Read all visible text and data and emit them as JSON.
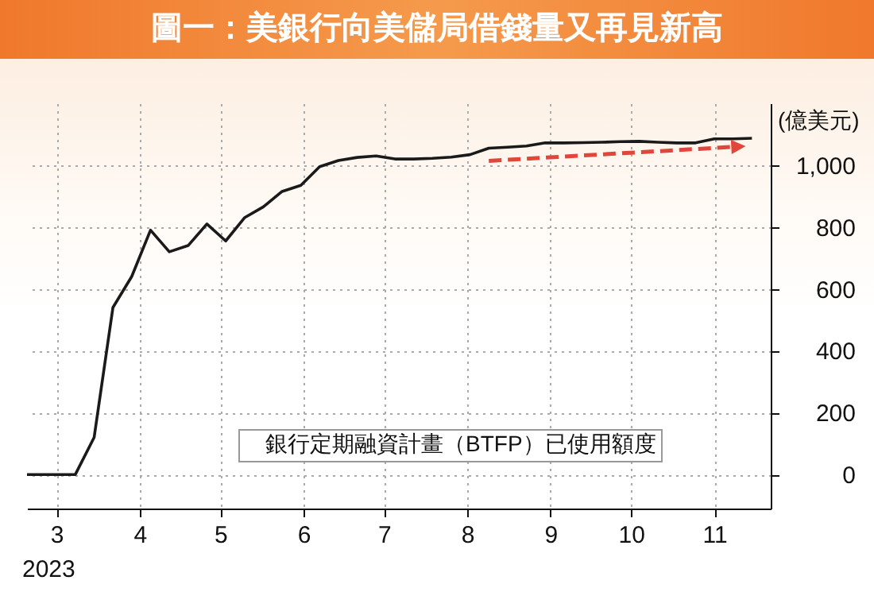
{
  "chart_data": {
    "type": "line",
    "title": "圖一：美銀行向美儲局借錢量又再見新高",
    "ylabel": "(億美元)",
    "x": [
      "2023-02-18",
      "2023-03-08",
      "2023-03-15",
      "2023-03-22",
      "2023-03-29",
      "2023-04-05",
      "2023-04-12",
      "2023-04-19",
      "2023-04-26",
      "2023-05-03",
      "2023-05-10",
      "2023-05-17",
      "2023-05-24",
      "2023-05-31",
      "2023-06-07",
      "2023-06-14",
      "2023-06-21",
      "2023-06-28",
      "2023-07-05",
      "2023-07-12",
      "2023-07-19",
      "2023-07-26",
      "2023-08-02",
      "2023-08-09",
      "2023-08-16",
      "2023-08-23",
      "2023-08-30",
      "2023-09-06",
      "2023-09-13",
      "2023-09-20",
      "2023-09-27",
      "2023-10-04",
      "2023-10-11",
      "2023-10-18",
      "2023-10-25",
      "2023-11-01",
      "2023-11-08",
      "2023-11-15"
    ],
    "series": [
      {
        "name": "銀行定期融資計畫（BTFP）已使用額度",
        "color": "#1a1a1a",
        "values": [
          0,
          0,
          120,
          540,
          640,
          790,
          720,
          740,
          810,
          755,
          830,
          865,
          915,
          935,
          995,
          1015,
          1025,
          1030,
          1020,
          1020,
          1022,
          1026,
          1034,
          1055,
          1058,
          1062,
          1072,
          1072,
          1073,
          1074,
          1076,
          1077,
          1074,
          1072,
          1072,
          1085,
          1085,
          1087
        ]
      }
    ],
    "xlim": [
      "2023-02-18",
      "2023-11-22"
    ],
    "ylim": [
      -110,
      1200
    ],
    "xticks": [
      {
        "value": "2023-03-01",
        "label": "3"
      },
      {
        "value": "2023-04-01",
        "label": "4"
      },
      {
        "value": "2023-05-01",
        "label": "5"
      },
      {
        "value": "2023-06-01",
        "label": "6"
      },
      {
        "value": "2023-07-01",
        "label": "7"
      },
      {
        "value": "2023-08-01",
        "label": "8"
      },
      {
        "value": "2023-09-01",
        "label": "9"
      },
      {
        "value": "2023-10-01",
        "label": "10"
      },
      {
        "value": "2023-11-01",
        "label": "11"
      }
    ],
    "yticks": [
      0,
      200,
      400,
      600,
      800,
      {
        "value": 1000,
        "label": "1,000"
      }
    ],
    "grid": true,
    "legend": "bottom",
    "annotations": [
      "2023"
    ]
  }
}
